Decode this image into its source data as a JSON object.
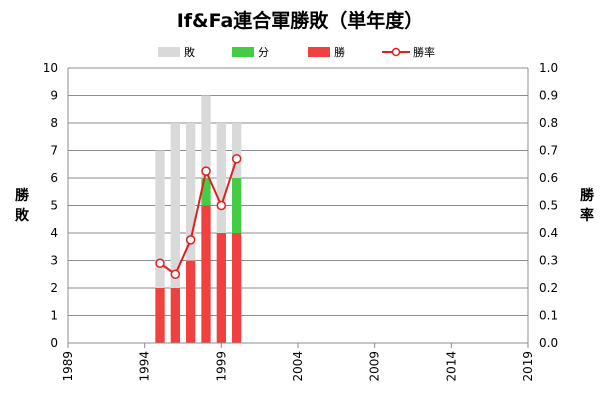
{
  "chart_data": {
    "type": "bar",
    "title": "If&Fa連合軍勝敗（単年度）",
    "x_tick_labels": [
      "1989",
      "1994",
      "1999",
      "2004",
      "2009",
      "2014",
      "2019"
    ],
    "x_range": [
      1989,
      2019
    ],
    "categories": [
      1995,
      1996,
      1997,
      1998,
      1999,
      2000
    ],
    "series": [
      {
        "name": "勝",
        "type": "bar",
        "axis": "left",
        "color": "#f04040",
        "values": [
          2,
          2,
          3,
          5,
          4,
          4
        ]
      },
      {
        "name": "分",
        "type": "bar",
        "axis": "left",
        "color": "#44cc44",
        "values": [
          0,
          0,
          0,
          1,
          0,
          2
        ]
      },
      {
        "name": "敗",
        "type": "bar",
        "axis": "left",
        "color": "#d9d9d9",
        "values": [
          5,
          6,
          5,
          3,
          4,
          2
        ]
      },
      {
        "name": "勝率",
        "type": "line",
        "axis": "right",
        "color": "#e02020",
        "values": [
          0.29,
          0.25,
          0.375,
          0.625,
          0.5,
          0.67
        ]
      }
    ],
    "stack_order": [
      "勝",
      "分",
      "敗"
    ],
    "legend_order": [
      "敗",
      "分",
      "勝",
      "勝率"
    ],
    "legend_position": "top",
    "y_left": {
      "label": "勝敗",
      "range": [
        0,
        10
      ],
      "tick_labels": [
        "0",
        "1",
        "2",
        "3",
        "4",
        "5",
        "6",
        "7",
        "8",
        "9",
        "10"
      ]
    },
    "y_right": {
      "label": "勝率",
      "range": [
        0,
        1
      ],
      "tick_labels": [
        "0.0",
        "0.1",
        "0.2",
        "0.3",
        "0.4",
        "0.5",
        "0.6",
        "0.7",
        "0.8",
        "0.9",
        "1.0"
      ]
    },
    "grid": true
  }
}
